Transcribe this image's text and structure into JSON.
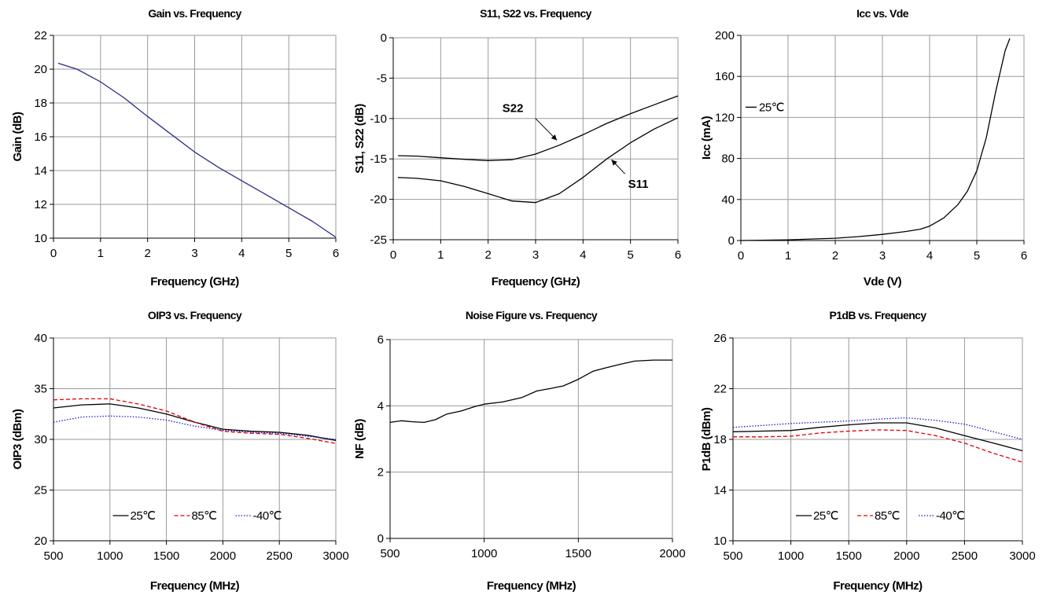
{
  "chart_data": [
    {
      "type": "line",
      "title": "Gain vs. Frequency",
      "xlabel": "Frequency (GHz)",
      "ylabel": "Gain (dB)",
      "xlim": [
        0,
        6
      ],
      "ylim": [
        10,
        22
      ],
      "xticks": [
        "0",
        "1",
        "2",
        "3",
        "4",
        "5",
        "6"
      ],
      "yticks": [
        "10",
        "12",
        "14",
        "16",
        "18",
        "20",
        "22"
      ],
      "grid": true,
      "series": [
        {
          "color": "#2b2b8c",
          "x": [
            0.1,
            0.5,
            1,
            1.5,
            2,
            2.5,
            3,
            3.5,
            4,
            4.5,
            5,
            5.5,
            6
          ],
          "y": [
            20.35,
            20.0,
            19.25,
            18.3,
            17.2,
            16.15,
            15.1,
            14.2,
            13.4,
            12.6,
            11.8,
            11.0,
            10.05
          ]
        }
      ]
    },
    {
      "type": "line",
      "title": "S11, S22 vs. Frequency",
      "xlabel": "Frequency (GHz)",
      "ylabel": "S11, S22 (dB)",
      "xlim": [
        0,
        6
      ],
      "ylim": [
        -25,
        0
      ],
      "xticks": [
        "0",
        "1",
        "2",
        "3",
        "4",
        "5",
        "6"
      ],
      "yticks": [
        "-25",
        "-20",
        "-15",
        "-10",
        "-5",
        "0"
      ],
      "grid": true,
      "annotations": [
        {
          "text": "S22",
          "x": 2.3,
          "y": -9.2,
          "arrow_to": [
            3.45,
            -12.7
          ]
        },
        {
          "text": "S11",
          "x": 4.95,
          "y": -18.6,
          "arrow_to": [
            4.6,
            -15.1
          ]
        }
      ],
      "series": [
        {
          "name": "S22",
          "color": "#000000",
          "x": [
            0.1,
            0.5,
            1,
            1.5,
            2,
            2.5,
            3,
            3.5,
            4,
            4.5,
            5,
            5.5,
            6
          ],
          "y": [
            -14.6,
            -14.65,
            -14.85,
            -15.05,
            -15.2,
            -15.1,
            -14.4,
            -13.3,
            -12.0,
            -10.6,
            -9.4,
            -8.3,
            -7.2
          ]
        },
        {
          "name": "S11",
          "color": "#000000",
          "x": [
            0.1,
            0.5,
            1,
            1.5,
            2,
            2.5,
            3,
            3.5,
            4,
            4.5,
            5,
            5.5,
            6
          ],
          "y": [
            -17.3,
            -17.4,
            -17.7,
            -18.4,
            -19.3,
            -20.2,
            -20.4,
            -19.3,
            -17.3,
            -15.0,
            -13.0,
            -11.3,
            -9.9
          ]
        }
      ]
    },
    {
      "type": "line",
      "title": "Icc vs. Vde",
      "xlabel": "Vde (V)",
      "ylabel": "Icc (mA)",
      "xlim": [
        0,
        6
      ],
      "ylim": [
        0,
        200
      ],
      "xticks": [
        "0",
        "1",
        "2",
        "3",
        "4",
        "5",
        "6"
      ],
      "yticks": [
        "0",
        "40",
        "80",
        "120",
        "160",
        "200"
      ],
      "grid": true,
      "legend": {
        "position": "left",
        "items": [
          "25℃"
        ]
      },
      "series": [
        {
          "name": "25℃",
          "color": "#000000",
          "x": [
            0,
            1,
            2,
            2.5,
            3,
            3.5,
            3.8,
            4.0,
            4.3,
            4.6,
            4.8,
            5.0,
            5.2,
            5.4,
            5.6,
            5.7
          ],
          "y": [
            0,
            0.7,
            2.2,
            3.8,
            6,
            8.8,
            11,
            14,
            22,
            35,
            48,
            68,
            100,
            145,
            185,
            197
          ]
        }
      ]
    },
    {
      "type": "line",
      "title": "OIP3 vs. Frequency",
      "xlabel": "Frequency (MHz)",
      "ylabel": "OIP3 (dBm)",
      "xlim": [
        500,
        3000
      ],
      "ylim": [
        20,
        40
      ],
      "xticks": [
        "500",
        "1000",
        "1500",
        "2000",
        "2500",
        "3000"
      ],
      "yticks": [
        "20",
        "25",
        "30",
        "35",
        "40"
      ],
      "grid": true,
      "legend": {
        "position": "bottom",
        "items": [
          "25℃",
          "85℃",
          "-40℃"
        ]
      },
      "series": [
        {
          "name": "25℃",
          "color": "#000000",
          "dash": "",
          "x": [
            500,
            750,
            1000,
            1250,
            1500,
            1750,
            2000,
            2250,
            2500,
            2750,
            3000
          ],
          "y": [
            33.1,
            33.4,
            33.5,
            33.1,
            32.5,
            31.7,
            31.0,
            30.8,
            30.7,
            30.4,
            29.9
          ]
        },
        {
          "name": "85℃",
          "color": "#e00000",
          "dash": "5,3",
          "x": [
            500,
            750,
            1000,
            1250,
            1500,
            1750,
            2000,
            2250,
            2500,
            2750,
            3000
          ],
          "y": [
            33.9,
            34.0,
            34.0,
            33.5,
            32.8,
            31.7,
            30.8,
            30.6,
            30.5,
            30.1,
            29.6
          ]
        },
        {
          "name": "-40℃",
          "color": "#1a1acc",
          "dash": "1.5,2",
          "x": [
            500,
            750,
            1000,
            1250,
            1500,
            1750,
            2000,
            2250,
            2500,
            2750,
            3000
          ],
          "y": [
            31.7,
            32.2,
            32.3,
            32.2,
            31.9,
            31.3,
            30.9,
            30.7,
            30.6,
            30.3,
            30.0
          ]
        }
      ]
    },
    {
      "type": "line",
      "title": "Noise Figure vs. Frequency",
      "xlabel": "Frequency (MHz)",
      "ylabel": "NF (dB)",
      "xlim": [
        500,
        2000
      ],
      "ylim": [
        0,
        6
      ],
      "xticks": [
        "500",
        "1000",
        "1500",
        "2000"
      ],
      "yticks": [
        "0",
        "2",
        "4",
        "6"
      ],
      "grid": true,
      "series": [
        {
          "color": "#000000",
          "x": [
            500,
            560,
            620,
            680,
            740,
            800,
            880,
            950,
            1000,
            1100,
            1200,
            1280,
            1350,
            1420,
            1500,
            1580,
            1650,
            1720,
            1800,
            1900,
            2000
          ],
          "y": [
            3.5,
            3.55,
            3.52,
            3.5,
            3.58,
            3.75,
            3.85,
            3.98,
            4.05,
            4.12,
            4.25,
            4.45,
            4.52,
            4.6,
            4.8,
            5.05,
            5.15,
            5.25,
            5.35,
            5.38,
            5.38
          ]
        }
      ]
    },
    {
      "type": "line",
      "title": "P1dB vs. Frequency",
      "xlabel": "Frequency (MHz)",
      "ylabel": "P1dB (dBm)",
      "xlim": [
        500,
        3000
      ],
      "ylim": [
        10,
        26
      ],
      "xticks": [
        "500",
        "1000",
        "1500",
        "2000",
        "2500",
        "3000"
      ],
      "yticks": [
        "10",
        "14",
        "18",
        "22",
        "26"
      ],
      "grid": true,
      "legend": {
        "position": "bottom",
        "items": [
          "25℃",
          "85℃",
          "-40℃"
        ]
      },
      "series": [
        {
          "name": "25℃",
          "color": "#000000",
          "dash": "",
          "x": [
            500,
            750,
            1000,
            1250,
            1500,
            1750,
            2000,
            2250,
            2500,
            2750,
            3000
          ],
          "y": [
            18.6,
            18.65,
            18.7,
            18.95,
            19.15,
            19.3,
            19.3,
            18.9,
            18.3,
            17.7,
            17.1
          ]
        },
        {
          "name": "85℃",
          "color": "#e00000",
          "dash": "5,3",
          "x": [
            500,
            750,
            1000,
            1250,
            1500,
            1750,
            2000,
            2250,
            2500,
            2750,
            3000
          ],
          "y": [
            18.2,
            18.2,
            18.25,
            18.5,
            18.65,
            18.75,
            18.7,
            18.3,
            17.7,
            16.9,
            16.2
          ]
        },
        {
          "name": "-40℃",
          "color": "#1a1acc",
          "dash": "1.5,2",
          "x": [
            500,
            750,
            1000,
            1250,
            1500,
            1750,
            2000,
            2250,
            2500,
            2750,
            3000
          ],
          "y": [
            18.95,
            19.1,
            19.25,
            19.35,
            19.45,
            19.6,
            19.7,
            19.5,
            19.2,
            18.6,
            18.0
          ]
        }
      ]
    }
  ]
}
